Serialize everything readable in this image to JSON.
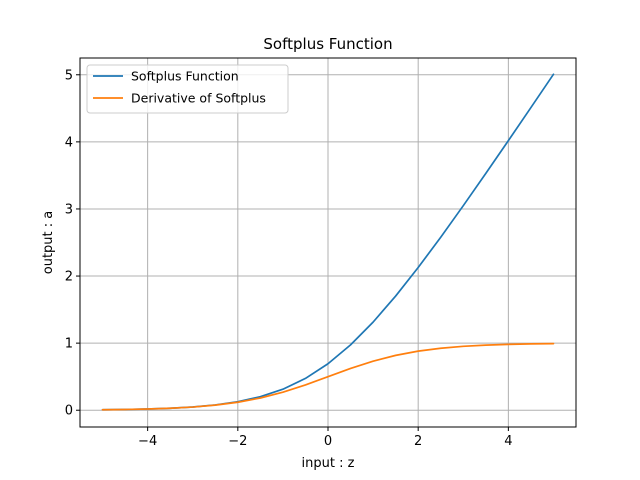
{
  "chart_data": {
    "type": "line",
    "title": "Softplus Function",
    "xlabel": "input : z",
    "ylabel": "output : a",
    "xlim": [
      -5.5,
      5.5
    ],
    "ylim": [
      -0.25,
      5.25
    ],
    "xticks": [
      -4,
      -2,
      0,
      2,
      4
    ],
    "xtick_labels": [
      "−4",
      "−2",
      "0",
      "2",
      "4"
    ],
    "yticks": [
      0,
      1,
      2,
      3,
      4,
      5
    ],
    "ytick_labels": [
      "0",
      "1",
      "2",
      "3",
      "4",
      "5"
    ],
    "grid": true,
    "legend_position": "top-left",
    "x": [
      -5,
      -4.5,
      -4,
      -3.5,
      -3,
      -2.5,
      -2,
      -1.5,
      -1,
      -0.5,
      0,
      0.5,
      1,
      1.5,
      2,
      2.5,
      3,
      3.5,
      4,
      4.5,
      5
    ],
    "series": [
      {
        "name": "Softplus Function",
        "color": "#1f77b4",
        "values": [
          0.0067,
          0.011,
          0.0181,
          0.0298,
          0.0486,
          0.0789,
          0.1269,
          0.2014,
          0.3133,
          0.4741,
          0.6931,
          0.9741,
          1.3133,
          1.7014,
          2.1269,
          2.5789,
          3.0486,
          3.5298,
          4.0181,
          4.511,
          5.0067
        ]
      },
      {
        "name": "Derivative of Softplus",
        "color": "#ff7f0e",
        "values": [
          0.0067,
          0.011,
          0.018,
          0.0293,
          0.0474,
          0.0759,
          0.1192,
          0.1824,
          0.2689,
          0.3775,
          0.5,
          0.6225,
          0.7311,
          0.8176,
          0.8808,
          0.9241,
          0.9526,
          0.9707,
          0.982,
          0.989,
          0.9933
        ]
      }
    ]
  }
}
